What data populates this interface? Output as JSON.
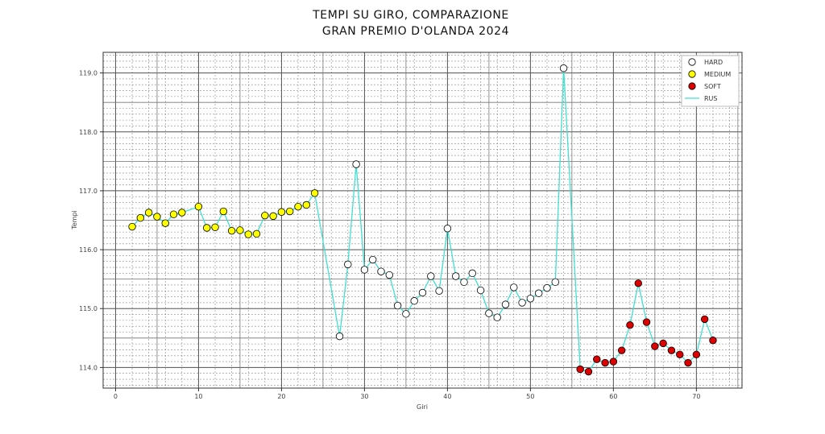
{
  "chart_data": {
    "type": "line",
    "title_lines": [
      "TEMPI SU GIRO, COMPARAZIONE",
      "GRAN PREMIO D'OLANDA 2024"
    ],
    "xlabel": "Giri",
    "ylabel": "Tempi",
    "xlim": [
      -1.5,
      75.5
    ],
    "ylim": [
      113.65,
      119.35
    ],
    "x_ticks": [
      0,
      10,
      20,
      30,
      40,
      50,
      60,
      70
    ],
    "x_tick_labels": [
      "0",
      "10",
      "20",
      "30",
      "40",
      "50",
      "60",
      "70"
    ],
    "y_ticks": [
      114.0,
      115.0,
      116.0,
      117.0,
      118.0,
      119.0
    ],
    "y_tick_labels": [
      "114.0",
      "115.0",
      "116.0",
      "117.0",
      "118.0",
      "119.0"
    ],
    "grid": true,
    "legend_position": "top-right",
    "line_series": {
      "name": "RUS",
      "color": "#40e0d0",
      "x": [
        2,
        3,
        4,
        5,
        6,
        7,
        8,
        10,
        11,
        12,
        13,
        14,
        15,
        16,
        17,
        18,
        19,
        20,
        21,
        22,
        23,
        24,
        27,
        28,
        29,
        30,
        31,
        32,
        33,
        34,
        35,
        36,
        37,
        38,
        39,
        40,
        41,
        42,
        43,
        44,
        45,
        46,
        47,
        48,
        49,
        50,
        51,
        52,
        53,
        54,
        56,
        57,
        58,
        59,
        60,
        61,
        62,
        63,
        64,
        65,
        66,
        67,
        68,
        69,
        70,
        71,
        72
      ],
      "y": [
        116.39,
        116.54,
        116.63,
        116.56,
        116.45,
        116.6,
        116.63,
        116.73,
        116.37,
        116.38,
        116.65,
        116.32,
        116.33,
        116.26,
        116.27,
        116.58,
        116.57,
        116.64,
        116.65,
        116.73,
        116.76,
        116.96,
        114.53,
        115.75,
        117.45,
        115.66,
        115.83,
        115.63,
        115.57,
        115.05,
        114.91,
        115.13,
        115.27,
        115.55,
        115.3,
        116.36,
        115.55,
        115.45,
        115.6,
        115.31,
        114.92,
        114.85,
        115.07,
        115.36,
        115.1,
        115.17,
        115.26,
        115.35,
        115.45,
        119.08,
        113.97,
        113.93,
        114.14,
        114.08,
        114.1,
        114.29,
        114.72,
        115.43,
        114.77,
        114.36,
        114.41,
        114.29,
        114.22,
        114.08,
        114.22,
        114.82,
        114.46
      ]
    },
    "compounds": [
      {
        "name": "HARD",
        "color": "#ffffff",
        "x": [
          27,
          28,
          29,
          30,
          31,
          32,
          33,
          34,
          35,
          36,
          37,
          38,
          39,
          40,
          41,
          42,
          43,
          44,
          45,
          46,
          47,
          48,
          49,
          50,
          51,
          52,
          53,
          54
        ]
      },
      {
        "name": "MEDIUM",
        "color": "#ffff00",
        "x": [
          2,
          3,
          4,
          5,
          6,
          7,
          8,
          10,
          11,
          12,
          13,
          14,
          15,
          16,
          17,
          18,
          19,
          20,
          21,
          22,
          23,
          24
        ]
      },
      {
        "name": "SOFT",
        "color": "#dd0000",
        "x": [
          56,
          57,
          58,
          59,
          60,
          61,
          62,
          63,
          64,
          65,
          66,
          67,
          68,
          69,
          70,
          71,
          72
        ]
      }
    ],
    "legend": [
      "HARD",
      "MEDIUM",
      "SOFT",
      "RUS"
    ]
  }
}
